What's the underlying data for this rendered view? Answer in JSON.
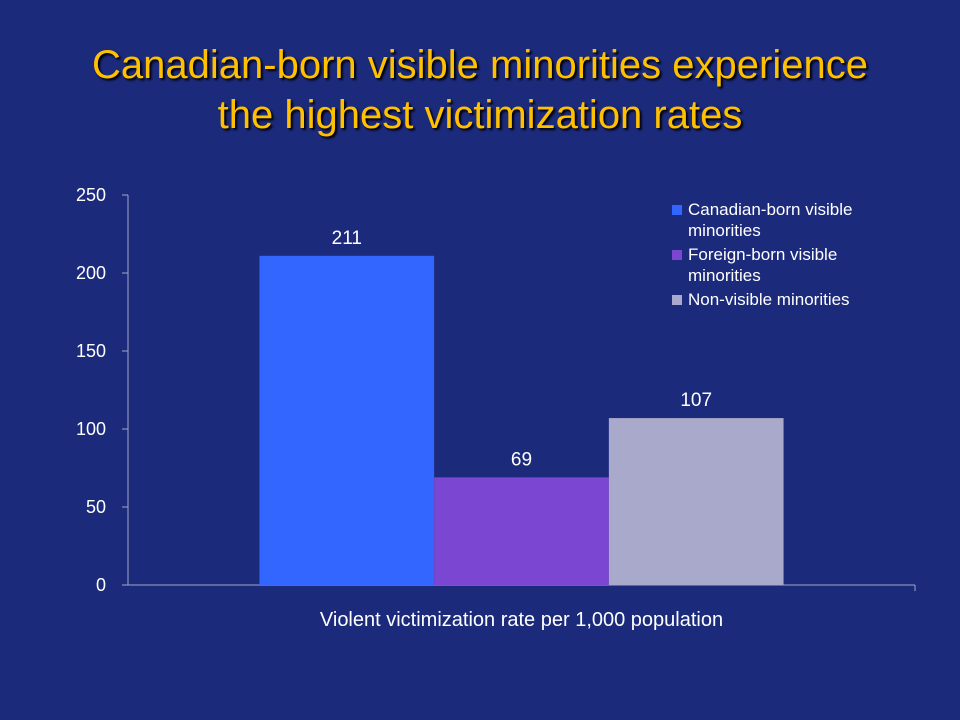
{
  "chart_data": {
    "type": "bar",
    "title": [
      "Canadian-born visible minorities experience",
      "the highest victimization rates"
    ],
    "categories": [
      "Violent victimization rate per 1,000 population"
    ],
    "series": [
      {
        "name": [
          "Canadian-born visible",
          "minorities"
        ],
        "values": [
          211
        ],
        "color": "#3366ff"
      },
      {
        "name": [
          "Foreign-born visible",
          "minorities"
        ],
        "values": [
          69
        ],
        "color": "#7b46d1"
      },
      {
        "name": [
          "Non-visible minorities"
        ],
        "values": [
          107
        ],
        "color": "#a9a9cb"
      }
    ],
    "yticks": [
      "0",
      "50",
      "100",
      "150",
      "200",
      "250"
    ],
    "ylim": [
      0,
      250
    ],
    "grid": false,
    "legend": "top-right",
    "data_labels": [
      "211",
      "69",
      "107"
    ]
  }
}
